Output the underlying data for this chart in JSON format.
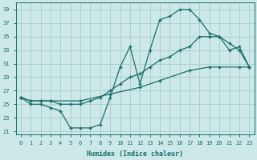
{
  "xlabel": "Humidex (Indice chaleur)",
  "xlim": [
    -0.5,
    23.5
  ],
  "ylim": [
    20.5,
    40
  ],
  "xticks": [
    0,
    1,
    2,
    3,
    4,
    5,
    6,
    7,
    8,
    9,
    10,
    11,
    12,
    13,
    14,
    15,
    16,
    17,
    18,
    19,
    20,
    21,
    22,
    23
  ],
  "yticks": [
    21,
    23,
    25,
    27,
    29,
    31,
    33,
    35,
    37,
    39
  ],
  "bg_color": "#cce8e8",
  "grid_color": "#add0d0",
  "line_color": "#1a6e6a",
  "line1_x": [
    0,
    1,
    2,
    3,
    4,
    5,
    6,
    7,
    8,
    9,
    10,
    11,
    12,
    13,
    14,
    15,
    16,
    17,
    18,
    19,
    20,
    21,
    22,
    23
  ],
  "line1_y": [
    26,
    25,
    25,
    24.5,
    24,
    21.5,
    21.5,
    21.5,
    22,
    26,
    30.5,
    33.5,
    28,
    33,
    37.5,
    38,
    39,
    39,
    37.5,
    35.5,
    35,
    34,
    33,
    30.5
  ],
  "line2_x": [
    0,
    1,
    2,
    3,
    4,
    5,
    6,
    7,
    8,
    9,
    10,
    11,
    12,
    13,
    14,
    15,
    16,
    17,
    18,
    19,
    20,
    21,
    22,
    23
  ],
  "line2_y": [
    26,
    25.5,
    25.5,
    25.5,
    25,
    25,
    25,
    25.5,
    26,
    27,
    28,
    29,
    29.5,
    30.5,
    31.5,
    32,
    33,
    33.5,
    35,
    35,
    35,
    33,
    33.5,
    30.5
  ],
  "line3_x": [
    0,
    1,
    2,
    3,
    6,
    9,
    12,
    14,
    17,
    19,
    20,
    22,
    23
  ],
  "line3_y": [
    26,
    25.5,
    25.5,
    25.5,
    25.5,
    26.5,
    27.5,
    28.5,
    30,
    30.5,
    30.5,
    30.5,
    30.5
  ]
}
